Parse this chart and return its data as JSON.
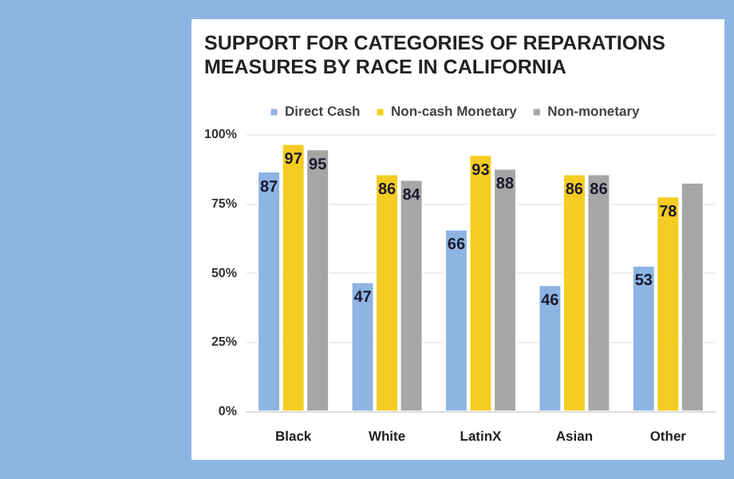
{
  "chart_data": {
    "type": "bar",
    "title": "SUPPORT FOR CATEGORIES OF REPARATIONS MEASURES BY RACE IN CALIFORNIA",
    "categories": [
      "Black",
      "White",
      "LatinX",
      "Asian",
      "Other"
    ],
    "series": [
      {
        "name": "Direct Cash",
        "color": "#8db4e2",
        "values": [
          87,
          47,
          66,
          46,
          53
        ],
        "value_labels": [
          "87",
          "47",
          "66",
          "46",
          "53"
        ]
      },
      {
        "name": "Non-cash Monetary",
        "color": "#f5cc22",
        "values": [
          97,
          86,
          93,
          86,
          78
        ],
        "value_labels": [
          "97",
          "86",
          "93",
          "86",
          "78"
        ]
      },
      {
        "name": "Non-monetary",
        "color": "#a6a6a6",
        "values": [
          95,
          84,
          88,
          86,
          83
        ],
        "value_labels": [
          "95",
          "84",
          "88",
          "86",
          null
        ]
      }
    ],
    "ylim": [
      0,
      100
    ],
    "yticks": [
      {
        "value": 0,
        "label": "0%"
      },
      {
        "value": 25,
        "label": "25%"
      },
      {
        "value": 50,
        "label": "50%"
      },
      {
        "value": 75,
        "label": "75%"
      },
      {
        "value": 100,
        "label": "100%"
      }
    ],
    "grid": "y",
    "legend": "top"
  }
}
